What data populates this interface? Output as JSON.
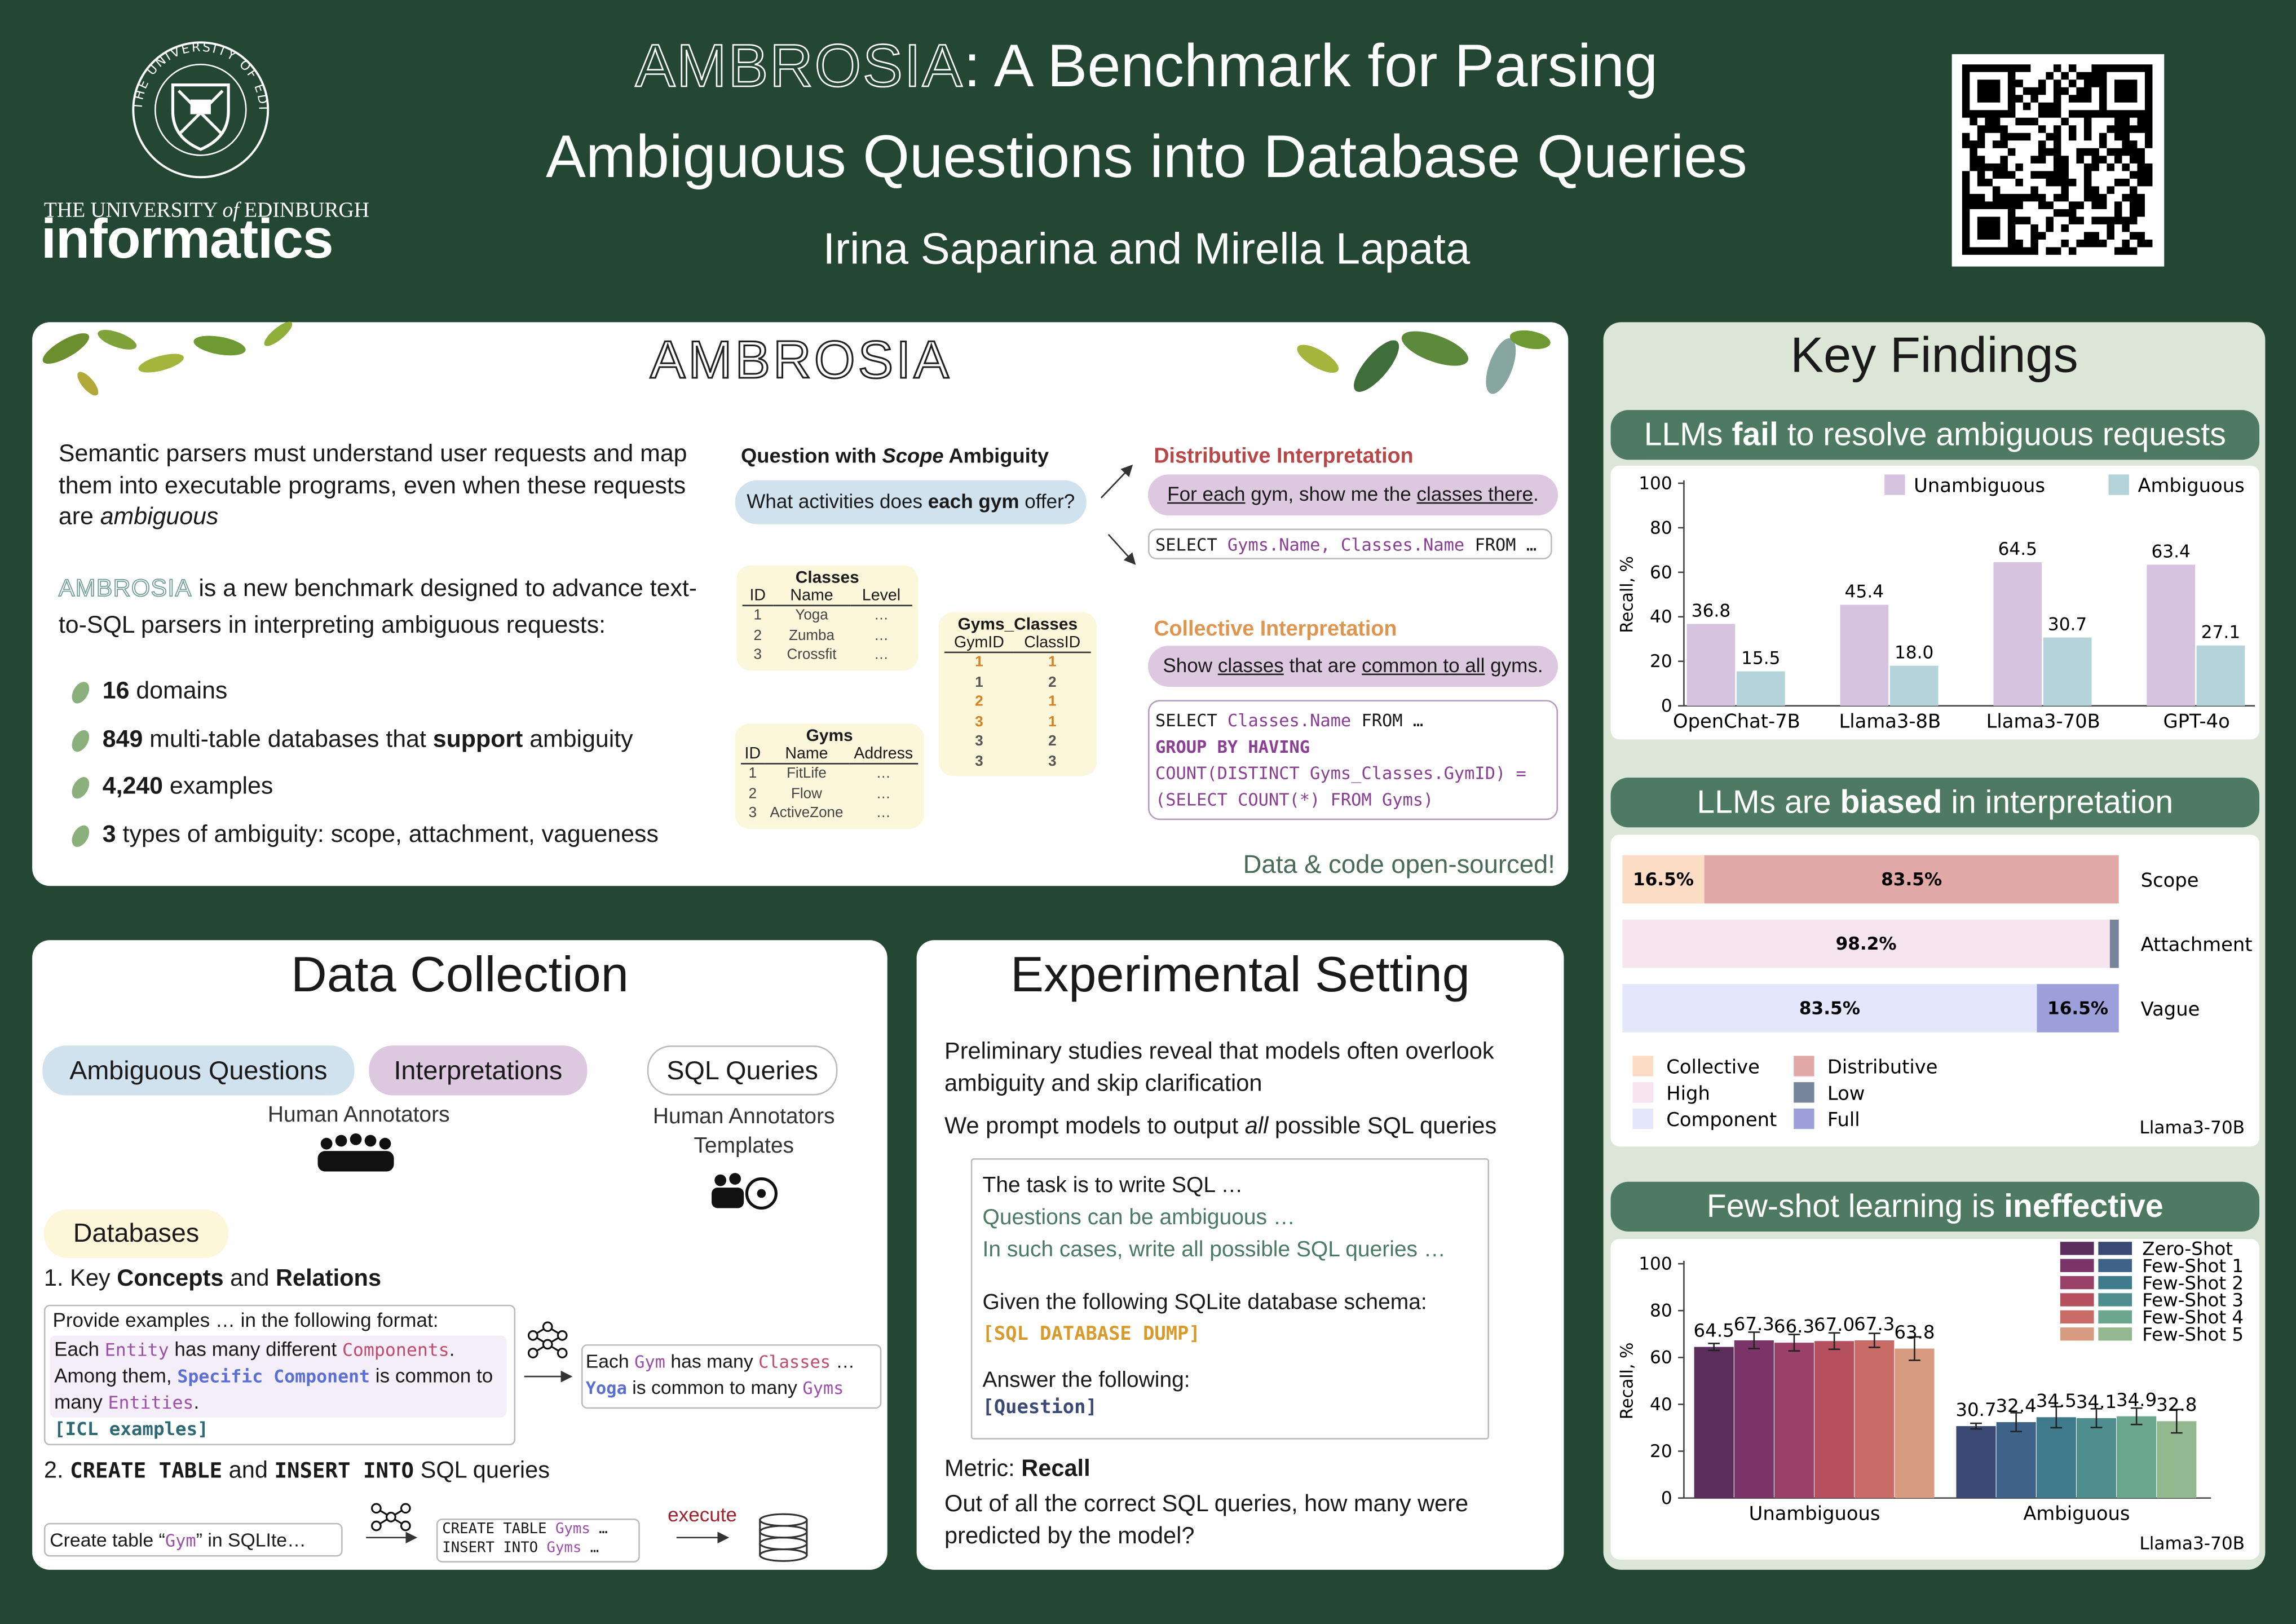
{
  "header": {
    "logo_ring": "THE UNIVERSITY OF EDINBURGH",
    "logo_line": [
      {
        "t": "THE UNIVERSITY "
      },
      {
        "i": "of"
      },
      {
        "t": " EDINBURGH"
      }
    ],
    "logo_word": "informatics",
    "title_line1": [
      {
        "x": "AMBROSIA"
      },
      {
        "t": ": A Benchmark for Parsing"
      }
    ],
    "title_line2": "Ambiguous Questions into Database Queries",
    "authors": "Irina Saparina and Mirella Lapata"
  },
  "ambrosia": {
    "heading": "AMBROSIA",
    "intro": [
      {
        "t": "Semantic parsers must understand user requests and map them into executable programs, even when these requests are "
      },
      {
        "i": "ambiguous"
      }
    ],
    "description": [
      {
        "x2": "AMBROSIA"
      },
      {
        "t": " is a new benchmark designed to advance text-to-SQL parsers in interpreting ambiguous requests:"
      }
    ],
    "bullets": [
      [
        {
          "b": "16"
        },
        {
          "t": " domains"
        }
      ],
      [
        {
          "b": "849"
        },
        {
          "t": " multi-table databases that "
        },
        {
          "b": "support"
        },
        {
          "t": " ambiguity"
        }
      ],
      [
        {
          "b": "4,240"
        },
        {
          "t": " examples"
        }
      ],
      [
        {
          "b": "3"
        },
        {
          "t": " types of ambiguity: scope, attachment, vagueness"
        }
      ]
    ],
    "question_heading": [
      {
        "b": "Question with "
      },
      {
        "bi": "Scope"
      },
      {
        "b": " Ambiguity"
      }
    ],
    "question": [
      {
        "t": "What activities does "
      },
      {
        "b": "each gym"
      },
      {
        "t": " offer?"
      }
    ],
    "tables": [
      {
        "name": "Classes",
        "header": [
          "ID",
          "Name",
          "Level"
        ],
        "rows": [
          [
            "1",
            "Yoga",
            "…"
          ],
          [
            "2",
            "Zumba",
            "…"
          ],
          [
            "3",
            "Crossfit",
            "…"
          ]
        ]
      },
      {
        "name": "Gyms",
        "header": [
          "ID",
          "Name",
          "Address"
        ],
        "rows": [
          [
            "1",
            "FitLife",
            "…"
          ],
          [
            "2",
            "Flow",
            "…"
          ],
          [
            "3",
            "ActiveZone",
            "…"
          ]
        ]
      },
      {
        "name": "Gyms_Classes",
        "header": [
          "GymID",
          "ClassID"
        ],
        "rows": [
          [
            "1",
            "1"
          ],
          [
            "1",
            "2"
          ],
          [
            "2",
            "1"
          ],
          [
            "3",
            "1"
          ],
          [
            "3",
            "2"
          ],
          [
            "3",
            "3"
          ]
        ]
      }
    ],
    "distributive": {
      "heading": "Distributive Interpretation",
      "text": [
        {
          "u": "For each"
        },
        {
          "t": " gym, show me the "
        },
        {
          "u": "classes there"
        },
        {
          "t": "."
        }
      ],
      "sql": [
        [
          {
            "m": "SELECT "
          },
          {
            "kw": "Gyms.Name, Classes.Name"
          },
          {
            "m": " FROM …"
          }
        ]
      ]
    },
    "collective": {
      "heading": "Collective Interpretation",
      "text": [
        {
          "t": "Show "
        },
        {
          "u": "classes"
        },
        {
          "t": " that are "
        },
        {
          "u": "common to all"
        },
        {
          "t": " gyms."
        }
      ],
      "sql": [
        [
          {
            "m": "SELECT "
          },
          {
            "kw": "Classes.Name"
          },
          {
            "m": " FROM …"
          }
        ],
        [
          {
            "kwb": "GROUP BY HAVING"
          }
        ],
        [
          {
            "kw": "COUNT(DISTINCT Gyms_Classes.GymID) ="
          }
        ],
        [
          {
            "kw": "(SELECT COUNT(*) FROM Gyms)"
          }
        ]
      ]
    },
    "footer": "Data & code open-sourced!"
  },
  "data_collection": {
    "title": "Data Collection",
    "pills": [
      "Ambiguous Questions",
      "Interpretations",
      "SQL Queries"
    ],
    "annotators_left": "Human Annotators",
    "annotators_right": "Human Annotators",
    "templates": "Templates",
    "databases": "Databases",
    "step1": [
      {
        "t": "1. Key "
      },
      {
        "b": "Concepts"
      },
      {
        "t": " and "
      },
      {
        "b": "Relations"
      }
    ],
    "prompt_intro": "Provide examples … in the following format:",
    "prompt_format": [
      {
        "t": "Each "
      },
      {
        "pu": "Entity"
      },
      {
        "t": " has many different "
      },
      {
        "rd": "Components"
      },
      {
        "t": ". Among them, "
      },
      {
        "bl": "Specific Component"
      },
      {
        "t": " is common to many "
      },
      {
        "pu": "Entities"
      },
      {
        "t": "."
      }
    ],
    "prompt_icl": "[ICL examples]",
    "output": [
      [
        {
          "t": "Each "
        },
        {
          "pu": "Gym"
        },
        {
          "t": " has many "
        },
        {
          "rd": "Classes"
        },
        {
          "t": " …"
        }
      ],
      [
        {
          "bl": "Yoga"
        },
        {
          "t": " is common to many "
        },
        {
          "pu": "Gyms"
        }
      ]
    ],
    "step2": [
      {
        "t": "2. "
      },
      {
        "mb": "CREATE TABLE"
      },
      {
        "t": " and "
      },
      {
        "mb": "INSERT INTO"
      },
      {
        "t": " SQL queries"
      }
    ],
    "create_prompt": [
      {
        "t": "Create table “"
      },
      {
        "pu": "Gym"
      },
      {
        "t": "” in SQLIte…"
      }
    ],
    "create_output": [
      [
        {
          "m": "CREATE TABLE "
        },
        {
          "pu": "Gyms"
        },
        {
          "m": " …"
        }
      ],
      [
        {
          "m": "INSERT INTO "
        },
        {
          "pu": "Gyms"
        },
        {
          "m": " …"
        }
      ]
    ],
    "execute": "execute"
  },
  "experimental": {
    "title": "Experimental Setting",
    "p1": "Preliminary studies reveal that models often overlook ambiguity and skip clarification",
    "p2": [
      {
        "t": "We prompt models to output "
      },
      {
        "i": "all"
      },
      {
        "t": " possible SQL queries"
      }
    ],
    "prompt": {
      "line1": "The task is to write SQL …",
      "line2": "Questions can be ambiguous …",
      "line3": "In such cases, write all possible SQL queries …",
      "line4": "Given the following SQLite database schema:",
      "line5": "[SQL DATABASE DUMP]",
      "line6": "Answer the following:",
      "line7": "[Question]"
    },
    "metric": [
      {
        "t": "Metric: "
      },
      {
        "b": "Recall"
      }
    ],
    "metric_text": "Out of all the correct SQL queries, how many were predicted by the model?"
  },
  "key_findings": {
    "title": "Key Findings"
  },
  "chart_data": [
    {
      "type": "bar",
      "title": [
        {
          "t": "LLMs "
        },
        {
          "b": "fail"
        },
        {
          "t": " to resolve ambiguous requests"
        }
      ],
      "categories": [
        "OpenChat-7B",
        "Llama3-8B",
        "Llama3-70B",
        "GPT-4o"
      ],
      "series": [
        {
          "name": "Unambiguous",
          "color": "#d6c3e0",
          "values": [
            36.8,
            45.4,
            64.5,
            63.4
          ]
        },
        {
          "name": "Ambiguous",
          "color": "#b4d4da",
          "values": [
            15.5,
            18.0,
            30.7,
            27.1
          ],
          "value_labels": [
            "15.5",
            "18.0",
            "30.7",
            "27.1"
          ]
        }
      ],
      "ylim": [
        0,
        100
      ],
      "yticks": [
        0,
        20,
        40,
        60,
        80,
        100
      ],
      "ylabel": "Recall, %",
      "legend": "top"
    },
    {
      "type": "bar",
      "orientation": "horizontal",
      "stacked": true,
      "title": [
        {
          "t": "LLMs are "
        },
        {
          "b": "biased"
        },
        {
          "t": " in interpretation"
        }
      ],
      "categories": [
        "Scope",
        "Attachment",
        "Vague"
      ],
      "xlim": [
        0,
        100
      ],
      "series": [
        {
          "name": "Collective",
          "color": "#fcdcc5",
          "values": [
            16.5,
            null,
            null
          ],
          "value_labels": [
            "16.5%",
            null,
            null
          ]
        },
        {
          "name": "Distributive",
          "color": "#e1a8a8",
          "values": [
            83.5,
            null,
            null
          ],
          "value_labels": [
            "83.5%",
            null,
            null
          ]
        },
        {
          "name": "High",
          "color": "#f6e4ef",
          "values": [
            null,
            98.2,
            null
          ],
          "value_labels": [
            null,
            "98.2%",
            null
          ]
        },
        {
          "name": "Low",
          "color": "#778499",
          "values": [
            null,
            1.8,
            null
          ]
        },
        {
          "name": "Component",
          "color": "#e4e6fb",
          "values": [
            null,
            null,
            83.5
          ],
          "value_labels": [
            null,
            null,
            "83.5%"
          ]
        },
        {
          "name": "Full",
          "color": "#9d9fda",
          "values": [
            null,
            null,
            16.5
          ],
          "value_labels": [
            null,
            null,
            "16.5%"
          ]
        }
      ],
      "legend": "lower left",
      "note": "Llama3-70B"
    },
    {
      "type": "bar",
      "title": [
        {
          "t": "Few-shot learning is "
        },
        {
          "b": "ineffective"
        }
      ],
      "categories": [
        "Unambiguous",
        "Ambiguous"
      ],
      "series": [
        {
          "name": "Zero-Shot",
          "colors": [
            "#5b2d5d",
            "#3b4a74"
          ],
          "values": [
            64.5,
            30.7
          ],
          "errors": [
            1.5,
            1.2
          ]
        },
        {
          "name": "Few-Shot 1",
          "colors": [
            "#7a3467",
            "#3f6388"
          ],
          "values": [
            67.3,
            32.4
          ],
          "errors": [
            3.5,
            4
          ]
        },
        {
          "name": "Few-Shot 2",
          "colors": [
            "#9b4068",
            "#3f7b8c"
          ],
          "values": [
            66.3,
            34.5
          ],
          "errors": [
            3.5,
            4.5
          ]
        },
        {
          "name": "Few-Shot 3",
          "colors": [
            "#b5505f",
            "#4f8e8f"
          ],
          "values": [
            67.0,
            34.1
          ],
          "value_labels": [
            "67.0",
            "34.1"
          ],
          "errors": [
            3.5,
            4
          ]
        },
        {
          "name": "Few-Shot 4",
          "colors": [
            "#c96b67",
            "#6ba68f"
          ],
          "values": [
            67.3,
            34.9
          ],
          "errors": [
            3,
            3.5
          ]
        },
        {
          "name": "Few-Shot 5",
          "colors": [
            "#d69b80",
            "#93b890"
          ],
          "values": [
            63.8,
            32.8
          ],
          "errors": [
            5,
            5
          ]
        }
      ],
      "ylim": [
        0,
        100
      ],
      "yticks": [
        0,
        20,
        40,
        60,
        80,
        100
      ],
      "ylabel": "Recall, %",
      "legend": "upper right",
      "note": "Llama3-70B"
    }
  ]
}
